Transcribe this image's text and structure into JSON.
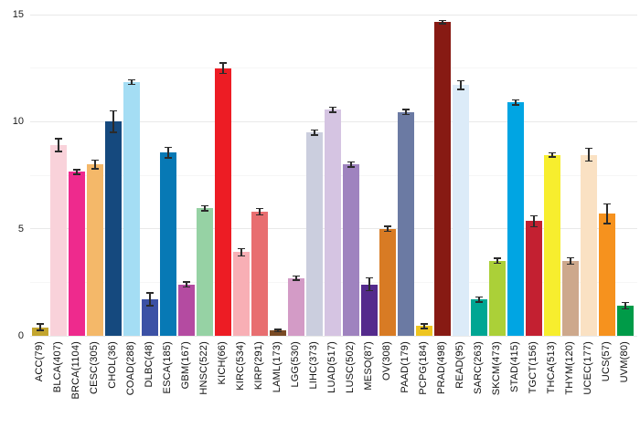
{
  "chart_data": {
    "type": "bar",
    "title": "",
    "xlabel": "",
    "ylabel": "",
    "ylim": [
      0,
      15
    ],
    "yticks": [
      0,
      5,
      10,
      15
    ],
    "minor_gridlines": [
      2.5,
      7.5,
      12.5
    ],
    "grid": "horizontal",
    "legend": "none",
    "background_color": "#ffffff",
    "error_bar_color": "#2b2b2b",
    "categories": [
      "ACC(79)",
      "BLCA(407)",
      "BRCA(1104)",
      "CESC(305)",
      "CHOL(36)",
      "COAD(288)",
      "DLBC(48)",
      "ESCA(185)",
      "GBM(167)",
      "HNSC(522)",
      "KICH(66)",
      "KIRC(534)",
      "KIRP(291)",
      "LAML(173)",
      "LGG(530)",
      "LIHC(373)",
      "LUAD(517)",
      "LUSC(502)",
      "MESO(87)",
      "OV(308)",
      "PAAD(179)",
      "PCPG(184)",
      "PRAD(498)",
      "READ(95)",
      "SARC(263)",
      "SKCM(473)",
      "STAD(415)",
      "TGCT(156)",
      "THCA(513)",
      "THYM(120)",
      "UCEC(177)",
      "UCS(57)",
      "UVM(80)"
    ],
    "values": [
      0.4,
      8.9,
      7.65,
      8.0,
      10.0,
      11.85,
      1.7,
      8.55,
      2.4,
      5.95,
      12.5,
      3.9,
      5.8,
      0.25,
      2.7,
      9.5,
      10.55,
      8.0,
      2.4,
      5.0,
      10.45,
      0.45,
      14.65,
      11.7,
      1.7,
      3.5,
      10.9,
      5.35,
      8.45,
      3.5,
      8.45,
      5.7,
      1.4
    ],
    "errors": [
      0.15,
      0.3,
      0.1,
      0.2,
      0.5,
      0.1,
      0.3,
      0.25,
      0.12,
      0.12,
      0.25,
      0.18,
      0.15,
      0.05,
      0.1,
      0.12,
      0.12,
      0.12,
      0.3,
      0.12,
      0.12,
      0.1,
      0.08,
      0.2,
      0.12,
      0.12,
      0.12,
      0.25,
      0.1,
      0.15,
      0.3,
      0.45,
      0.15
    ],
    "colors": [
      "#c3a52e",
      "#f9d2da",
      "#ee2a8d",
      "#f4b869",
      "#15497e",
      "#a4ddf4",
      "#3c51a5",
      "#0779b5",
      "#b44ba1",
      "#96d2a4",
      "#ed1c24",
      "#f8afb5",
      "#e86e70",
      "#7a4b25",
      "#d39bc6",
      "#cbcede",
      "#d5c4e2",
      "#9f83bf",
      "#542a8c",
      "#d87b24",
      "#6b7aa3",
      "#eec520",
      "#871a13",
      "#dcebf8",
      "#00a693",
      "#abd038",
      "#00a5e3",
      "#c32031",
      "#f7ee2e",
      "#cda88c",
      "#fae1c3",
      "#f6921e",
      "#009b48"
    ]
  }
}
